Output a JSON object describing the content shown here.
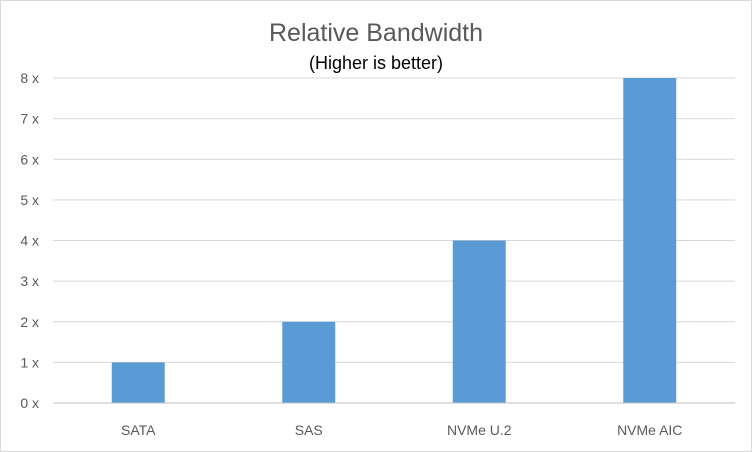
{
  "chart_data": {
    "type": "bar",
    "title": "Relative Bandwidth",
    "subtitle": "(Higher is better)",
    "categories": [
      "SATA",
      "SAS",
      "NVMe U.2",
      "NVMe AIC"
    ],
    "values": [
      1,
      2,
      4,
      8
    ],
    "ylim": [
      0,
      8
    ],
    "yticks": [
      0,
      1,
      2,
      3,
      4,
      5,
      6,
      7,
      8
    ],
    "ytick_suffix": " x",
    "xlabel": "",
    "ylabel": "",
    "grid": true,
    "legend": "none",
    "colors": {
      "bar": "#5b9bd5",
      "grid": "#d9d9d9",
      "axis": "#bfbfbf",
      "tick_text": "#595959"
    }
  }
}
